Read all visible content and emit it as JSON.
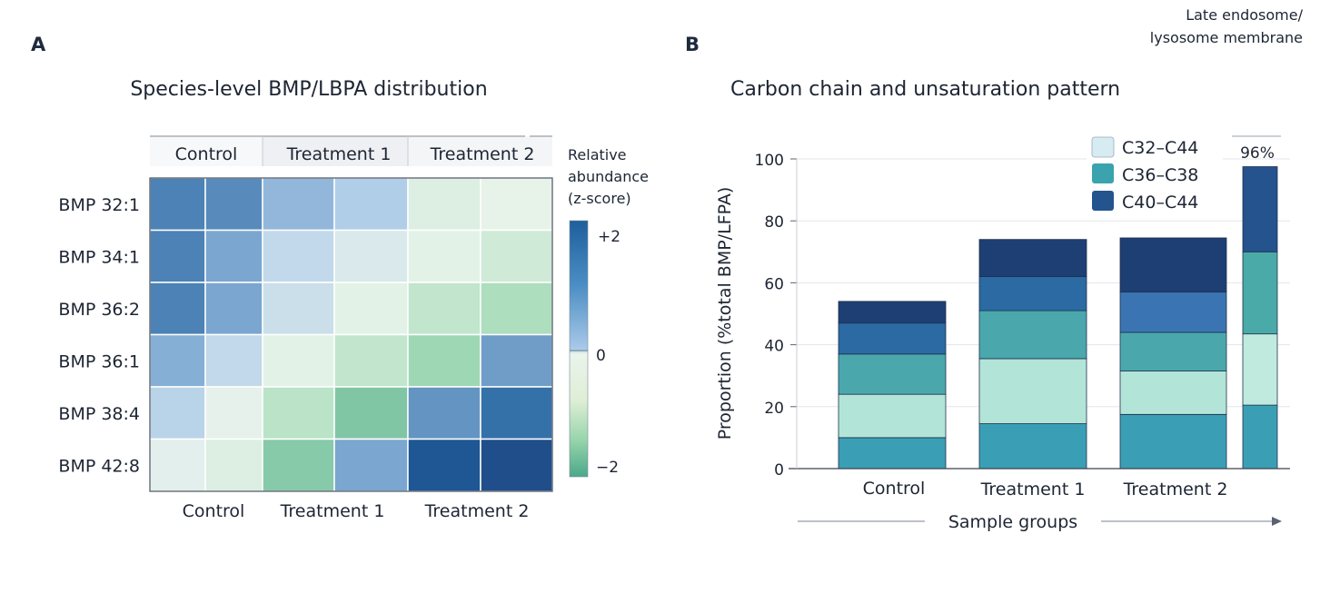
{
  "corner_note": [
    "Late endosome/",
    "lysosome membrane"
  ],
  "chart_data": [
    {
      "type": "heatmap",
      "panel_label": "A",
      "title": "Species-level BMP/LBPA distribution",
      "header_groups": [
        "Control",
        "Treatment 1",
        "Treatment 2"
      ],
      "x_groups": [
        "Control",
        "Treatment 1",
        "Treatment 2"
      ],
      "columns_per_group": 2,
      "rows": [
        "BMP 32:1",
        "BMP 34:1",
        "BMP 36:2",
        "BMP 36:1",
        "BMP 38:4",
        "BMP 42:8"
      ],
      "values": [
        [
          1.6,
          1.5,
          1.0,
          0.7,
          -0.2,
          -0.05
        ],
        [
          1.6,
          1.2,
          0.5,
          0.2,
          -0.1,
          -0.4
        ],
        [
          1.6,
          1.2,
          0.4,
          -0.1,
          -0.6,
          -0.9
        ],
        [
          1.1,
          0.5,
          -0.1,
          -0.6,
          -1.1,
          1.3
        ],
        [
          0.6,
          0.05,
          -0.7,
          -1.5,
          1.4,
          1.8
        ],
        [
          0.1,
          -0.2,
          -1.4,
          1.2,
          2.2,
          2.4
        ]
      ],
      "colorbar": {
        "title": [
          "Relative",
          "abundance",
          "(z-score)"
        ],
        "ticks": [
          {
            "value": 2,
            "label": "+2"
          },
          {
            "value": 0,
            "label": "0"
          },
          {
            "value": -2,
            "label": "−2"
          }
        ],
        "range": [
          -2.2,
          2.2
        ],
        "colors": {
          "high": "#1e5f9c",
          "mid_high": "#a9c9e8",
          "zero": "#eaf4ec",
          "mid_low": "#a6dbb8",
          "low": "#4aa88a",
          "max": "#1f4a85"
        }
      }
    },
    {
      "type": "bar",
      "stacked": true,
      "panel_label": "B",
      "title": "Carbon chain and unsaturation pattern",
      "categories": [
        "Control",
        "Treatment 1",
        "Treatment 2",
        ""
      ],
      "ylabel": "Proportion (%total BMP/LFPA)",
      "xlabel": "Sample groups",
      "ylim": [
        0,
        100
      ],
      "yticks": [
        0,
        20,
        40,
        60,
        80,
        100
      ],
      "grid": true,
      "segments": [
        [
          10,
          14,
          13,
          10,
          7
        ],
        [
          14.5,
          21,
          15.5,
          11,
          12
        ],
        [
          17.5,
          14,
          12.5,
          13,
          17.5
        ],
        [
          20.5,
          23,
          26.5,
          27.5
        ]
      ],
      "segment_colors": [
        [
          "#3a9fb5",
          "#b2e5d8",
          "#4aa8ad",
          "#2b6aa3",
          "#1d3f73"
        ],
        [
          "#3a9fb5",
          "#b2e5d8",
          "#4aa8ad",
          "#2b6aa3",
          "#1d3f73"
        ],
        [
          "#3a9fb5",
          "#b2e5d8",
          "#4aa8ad",
          "#3b74b3",
          "#1d3f73"
        ],
        [
          "#3a9fb5",
          "#c0eade",
          "#4aaaa8",
          "#24538e"
        ]
      ],
      "annotation": "96%",
      "legend": {
        "position": "top-right",
        "entries": [
          {
            "label": "C32–C44",
            "color": "#d6ecf2"
          },
          {
            "label": "C36–C38",
            "color": "#3aa3ad"
          },
          {
            "label": "C40–C44",
            "color": "#24548e"
          }
        ]
      }
    }
  ]
}
